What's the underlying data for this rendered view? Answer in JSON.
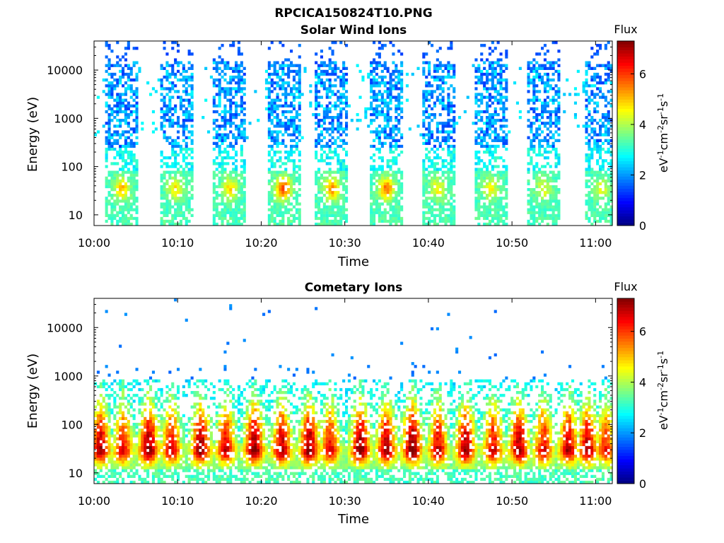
{
  "figure": {
    "title": "RPCICA150824T10.PNG"
  },
  "colormap": {
    "stops": [
      "#00007f",
      "#0000ff",
      "#007fff",
      "#00ffff",
      "#7fff7f",
      "#ffff00",
      "#ff7f00",
      "#ff0000",
      "#7f0000"
    ]
  },
  "chart_data": [
    {
      "type": "heatmap",
      "title": "Solar Wind Ions",
      "xlabel": "Time",
      "ylabel": "Energy (eV)",
      "x_ticks": [
        "10:00",
        "10:10",
        "10:20",
        "10:30",
        "10:40",
        "10:50",
        "11:00"
      ],
      "x_range_minutes": [
        0,
        62
      ],
      "y_scale": "log",
      "y_ticks": [
        "10",
        "100",
        "1000",
        "10000"
      ],
      "y_range_eV": [
        6,
        40000
      ],
      "colorbar": {
        "label": "Flux",
        "unit_label": "eV-1cm-2sr-1s-1",
        "ticks": [
          "0",
          "2",
          "4",
          "6"
        ],
        "range": [
          0,
          7.3
        ]
      },
      "bursts_minutes": [
        3.2,
        9.6,
        16.1,
        22.5,
        28.3,
        34.8,
        41.0,
        47.3,
        53.6,
        60.6
      ],
      "burst_peak_flux": [
        4.8,
        4.5,
        4.6,
        5.8,
        5.2,
        5.4,
        4.4,
        4.3,
        4.2,
        4.1
      ],
      "peak_energy_eV": 35
    },
    {
      "type": "heatmap",
      "title": "Cometary Ions",
      "xlabel": "Time",
      "ylabel": "Energy (eV)",
      "x_ticks": [
        "10:00",
        "10:10",
        "10:20",
        "10:30",
        "10:40",
        "10:50",
        "11:00"
      ],
      "x_range_minutes": [
        0,
        62
      ],
      "y_scale": "log",
      "y_ticks": [
        "10",
        "100",
        "1000",
        "10000"
      ],
      "y_range_eV": [
        6,
        40000
      ],
      "colorbar": {
        "label": "Flux",
        "unit_label": "eV-1cm-2sr-1s-1",
        "ticks": [
          "0",
          "2",
          "4",
          "6"
        ],
        "range": [
          0,
          7.3
        ]
      },
      "bursts_minutes": [
        0.6,
        3.3,
        6.4,
        9.1,
        12.6,
        15.6,
        19.0,
        22.3,
        25.6,
        28.1,
        31.7,
        34.8,
        37.9,
        41.0,
        44.3,
        47.6,
        50.7,
        53.6,
        56.6,
        58.9,
        61.1
      ],
      "burst_peak_flux": [
        6.9,
        6.3,
        7.2,
        6.5,
        7.1,
        6.6,
        7.2,
        6.9,
        7.2,
        6.4,
        7.2,
        6.9,
        7.3,
        6.6,
        7.0,
        6.5,
        7.0,
        6.4,
        6.8,
        6.9,
        6.2
      ],
      "peak_energy_eV": 30
    }
  ]
}
